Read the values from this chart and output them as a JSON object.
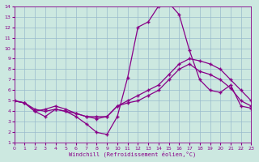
{
  "title": "",
  "xlabel": "Windchill (Refroidissement éolien,°C)",
  "ylabel": "",
  "bg_color": "#cce8e0",
  "line_color": "#880088",
  "grid_color": "#99bbcc",
  "xlim": [
    0,
    23
  ],
  "ylim": [
    1,
    14
  ],
  "xticks": [
    0,
    1,
    2,
    3,
    4,
    5,
    6,
    7,
    8,
    9,
    10,
    11,
    12,
    13,
    14,
    15,
    16,
    17,
    18,
    19,
    20,
    21,
    22,
    23
  ],
  "yticks": [
    1,
    2,
    3,
    4,
    5,
    6,
    7,
    8,
    9,
    10,
    11,
    12,
    13,
    14
  ],
  "line1_x": [
    0,
    1,
    2,
    3,
    4,
    5,
    6,
    7,
    8,
    9,
    10,
    11,
    12,
    13,
    14,
    15,
    16,
    17,
    18,
    19,
    20,
    21,
    22,
    23
  ],
  "line1_y": [
    5.0,
    4.8,
    4.0,
    3.5,
    4.2,
    4.0,
    3.5,
    2.8,
    2.0,
    1.8,
    3.5,
    7.2,
    12.0,
    12.5,
    14.0,
    14.3,
    13.2,
    9.8,
    7.0,
    6.0,
    5.8,
    6.5,
    4.5,
    4.3
  ],
  "line2_x": [
    0,
    1,
    2,
    3,
    4,
    5,
    6,
    7,
    8,
    9,
    10,
    11,
    12,
    13,
    14,
    15,
    16,
    17,
    18,
    19,
    20,
    21,
    22,
    23
  ],
  "line2_y": [
    5.0,
    4.8,
    4.0,
    4.2,
    4.5,
    4.2,
    3.8,
    3.5,
    3.3,
    3.5,
    4.5,
    5.0,
    5.5,
    6.0,
    6.5,
    7.5,
    8.5,
    9.0,
    8.8,
    8.5,
    8.0,
    7.0,
    6.0,
    5.0
  ],
  "line3_x": [
    0,
    1,
    2,
    3,
    4,
    5,
    6,
    7,
    8,
    9,
    10,
    11,
    12,
    13,
    14,
    15,
    16,
    17,
    18,
    19,
    20,
    21,
    22,
    23
  ],
  "line3_y": [
    5.0,
    4.8,
    4.2,
    4.0,
    4.2,
    4.0,
    3.8,
    3.5,
    3.5,
    3.5,
    4.5,
    4.8,
    5.0,
    5.5,
    6.0,
    7.0,
    8.0,
    8.5,
    7.8,
    7.5,
    7.0,
    6.2,
    5.0,
    4.5
  ],
  "marker": "+",
  "markersize": 3,
  "linewidth": 0.9
}
